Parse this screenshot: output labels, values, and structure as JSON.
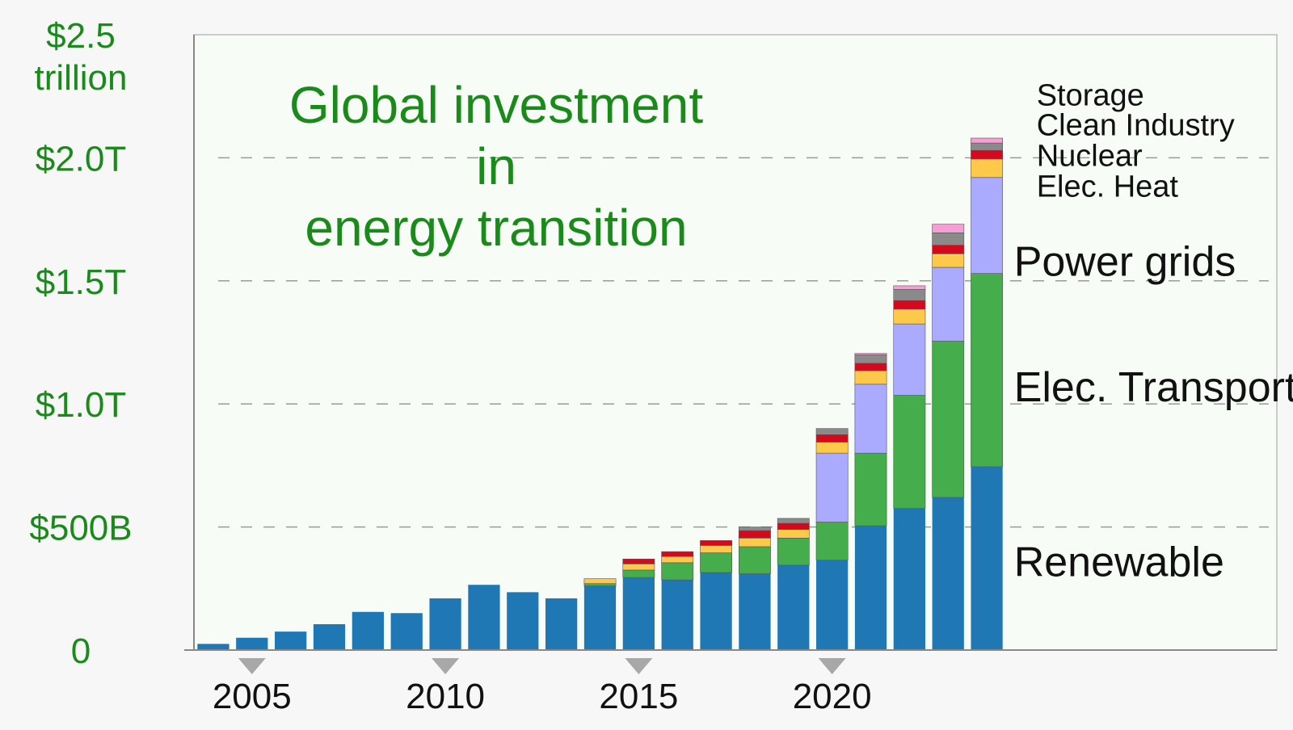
{
  "chart_data": {
    "type": "bar",
    "stacked": true,
    "title_lines": [
      "Global investment",
      "in",
      "energy transition"
    ],
    "y_axis": {
      "min": 0,
      "max": 2.5,
      "unit": "trillion USD",
      "ticks": [
        {
          "value": 0,
          "label": "0"
        },
        {
          "value": 0.5,
          "label": "$500B"
        },
        {
          "value": 1.0,
          "label": "$1.0T"
        },
        {
          "value": 1.5,
          "label": "$1.5T"
        },
        {
          "value": 2.0,
          "label": "$2.0T"
        },
        {
          "value": 2.5,
          "label": "$2.5",
          "label2": "trillion"
        }
      ],
      "gridlines": [
        0.5,
        1.0,
        1.5,
        2.0
      ]
    },
    "x_axis": {
      "ticks": [
        {
          "year": 2005,
          "label": "2005"
        },
        {
          "year": 2010,
          "label": "2010"
        },
        {
          "year": 2015,
          "label": "2015"
        },
        {
          "year": 2020,
          "label": "2020"
        }
      ],
      "range": [
        2003.5,
        2031.5
      ]
    },
    "years": [
      2004,
      2005,
      2006,
      2007,
      2008,
      2009,
      2010,
      2011,
      2012,
      2013,
      2014,
      2015,
      2016,
      2017,
      2018,
      2019,
      2020,
      2021,
      2022,
      2023,
      2024
    ],
    "series": [
      {
        "name": "Renewable",
        "color": "#1f77b4",
        "values": [
          0.025,
          0.05,
          0.075,
          0.105,
          0.155,
          0.15,
          0.21,
          0.265,
          0.235,
          0.21,
          0.26,
          0.295,
          0.285,
          0.315,
          0.31,
          0.345,
          0.365,
          0.505,
          0.575,
          0.62,
          0.745
        ]
      },
      {
        "name": "Elec. Transport",
        "color": "#45ad4b",
        "values": [
          0,
          0,
          0,
          0,
          0,
          0,
          0,
          0,
          0,
          0,
          0.01,
          0.03,
          0.07,
          0.08,
          0.11,
          0.11,
          0.155,
          0.295,
          0.46,
          0.635,
          0.785
        ]
      },
      {
        "name": "Power grids",
        "color": "#aaaaff",
        "values": [
          0,
          0,
          0,
          0,
          0,
          0,
          0,
          0,
          0,
          0,
          0,
          0,
          0,
          0,
          0,
          0,
          0.28,
          0.28,
          0.29,
          0.3,
          0.39
        ]
      },
      {
        "name": "Elec. Heat",
        "color": "#fcc94a",
        "values": [
          0,
          0,
          0,
          0,
          0,
          0,
          0,
          0,
          0,
          0,
          0.02,
          0.025,
          0.025,
          0.03,
          0.035,
          0.035,
          0.045,
          0.055,
          0.06,
          0.055,
          0.075
        ]
      },
      {
        "name": "Nuclear",
        "color": "#d7081d",
        "values": [
          0,
          0,
          0,
          0,
          0,
          0,
          0,
          0,
          0,
          0,
          0,
          0.02,
          0.02,
          0.02,
          0.03,
          0.025,
          0.03,
          0.03,
          0.035,
          0.035,
          0.035
        ]
      },
      {
        "name": "Clean Industry",
        "color": "#8a8a8a",
        "values": [
          0,
          0,
          0,
          0,
          0,
          0,
          0,
          0,
          0,
          0,
          0,
          0,
          0,
          0,
          0.015,
          0.02,
          0.025,
          0.035,
          0.045,
          0.05,
          0.03
        ]
      },
      {
        "name": "Storage",
        "color": "#f5a0d4",
        "values": [
          0,
          0,
          0,
          0,
          0,
          0,
          0,
          0,
          0,
          0,
          0,
          0,
          0,
          0,
          0,
          0,
          0,
          0.005,
          0.015,
          0.035,
          0.02
        ]
      }
    ],
    "series_labels": [
      {
        "text": "Renewable",
        "size": "big",
        "y": 0.36
      },
      {
        "text": "Elec. Transport",
        "size": "big",
        "y": 1.07
      },
      {
        "text": "Power grids",
        "size": "big",
        "y": 1.58
      },
      {
        "text": "Elec. Heat",
        "size": "small",
        "y": 1.885
      },
      {
        "text": "Nuclear",
        "size": "small",
        "y": 2.01
      },
      {
        "text": "Clean Industry",
        "size": "small",
        "y": 2.135
      },
      {
        "text": "Storage",
        "size": "small",
        "y": 2.255
      }
    ],
    "colors": {
      "plot_background": "#f8fcf7",
      "axis": "#888888",
      "tick_text": "#1a8a1a",
      "title": "#1a8a1a",
      "marker": "#a8a8a8"
    }
  }
}
